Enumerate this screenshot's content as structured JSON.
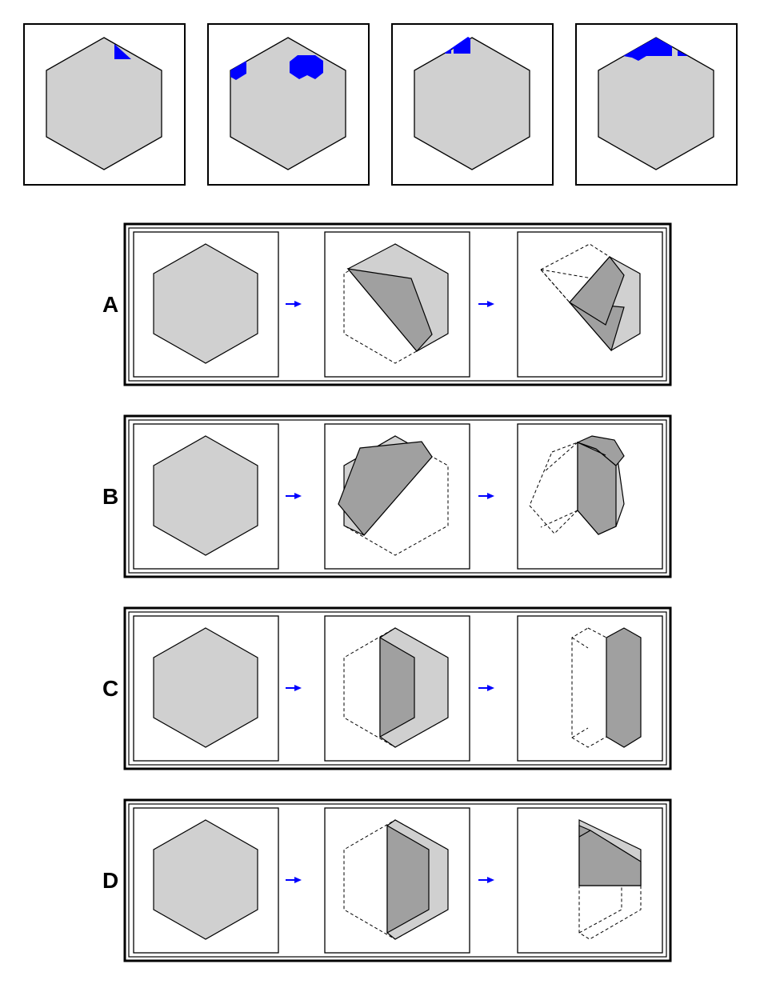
{
  "puzzle": {
    "type": "paper-folding-and-cutting",
    "colors": {
      "paper": "#d0d0d0",
      "folded_layer": "#a0a0a0",
      "cut_region": "#0000ff",
      "outline": "#000000",
      "background": "#ffffff",
      "arrow": "#0000ff"
    }
  },
  "result_panels": [
    {
      "name": "result-1"
    },
    {
      "name": "result-2"
    },
    {
      "name": "result-3"
    },
    {
      "name": "result-4"
    }
  ],
  "options": [
    {
      "letter": "A",
      "steps": [
        "original-hexagon",
        "fold-1",
        "fold-2"
      ]
    },
    {
      "letter": "B",
      "steps": [
        "original-hexagon",
        "fold-1",
        "fold-2"
      ]
    },
    {
      "letter": "C",
      "steps": [
        "original-hexagon",
        "fold-1",
        "fold-2"
      ]
    },
    {
      "letter": "D",
      "steps": [
        "original-hexagon",
        "fold-1",
        "fold-2"
      ]
    }
  ],
  "icons": {
    "step_arrow": "right-arrow-icon"
  }
}
